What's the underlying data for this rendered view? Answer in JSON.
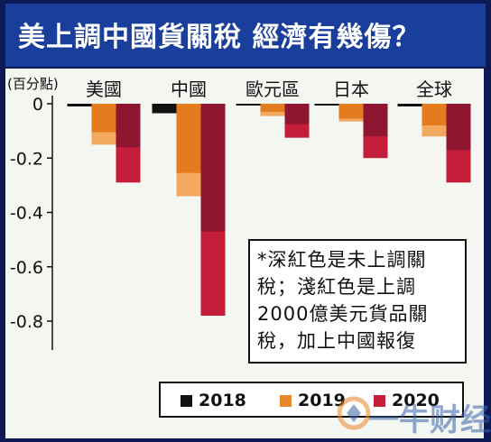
{
  "title": "美上調中國貨關稅 經濟有幾傷？",
  "chart_data": {
    "type": "bar",
    "ylabel": "(百分點)",
    "ylim": [
      -0.85,
      0.03
    ],
    "yticks": [
      0,
      -0.2,
      -0.4,
      -0.6,
      -0.8
    ],
    "ytick_labels": [
      "0",
      "-0.2",
      "-0.4",
      "-0.6",
      "-0.8"
    ],
    "categories": [
      "美國",
      "中國",
      "歐元區",
      "日本",
      "全球"
    ],
    "series": [
      {
        "name": "2018",
        "color": "#111111",
        "values": [
          -0.01,
          -0.035,
          -0.005,
          -0.005,
          -0.01
        ]
      },
      {
        "name": "2019",
        "color": "#e8862a",
        "values": [
          -0.15,
          -0.34,
          -0.045,
          -0.065,
          -0.12
        ]
      },
      {
        "name": "2020",
        "color": "#c41e3a",
        "values": [
          -0.29,
          -0.78,
          -0.125,
          -0.2,
          -0.29
        ]
      }
    ],
    "stacked_dark": [
      {
        "color": "#8f1630",
        "values": [
          -0.16,
          -0.47,
          -0.075,
          -0.12,
          -0.17
        ]
      },
      {
        "color": "#f3a860",
        "values": [
          -0.105,
          -0.255,
          -0.03,
          -0.055,
          -0.08
        ]
      }
    ]
  },
  "note": {
    "lines": [
      "*深紅色是未上調關",
      "稅；淺紅色是上調",
      "2000億美元貨品關",
      "稅，加上中國報復"
    ]
  },
  "legend": [
    {
      "label": "2018",
      "color": "#111111"
    },
    {
      "label": "2019",
      "color": "#e8862a"
    },
    {
      "label": "2020",
      "color": "#c41e3a"
    }
  ],
  "watermark": "一牛财经"
}
